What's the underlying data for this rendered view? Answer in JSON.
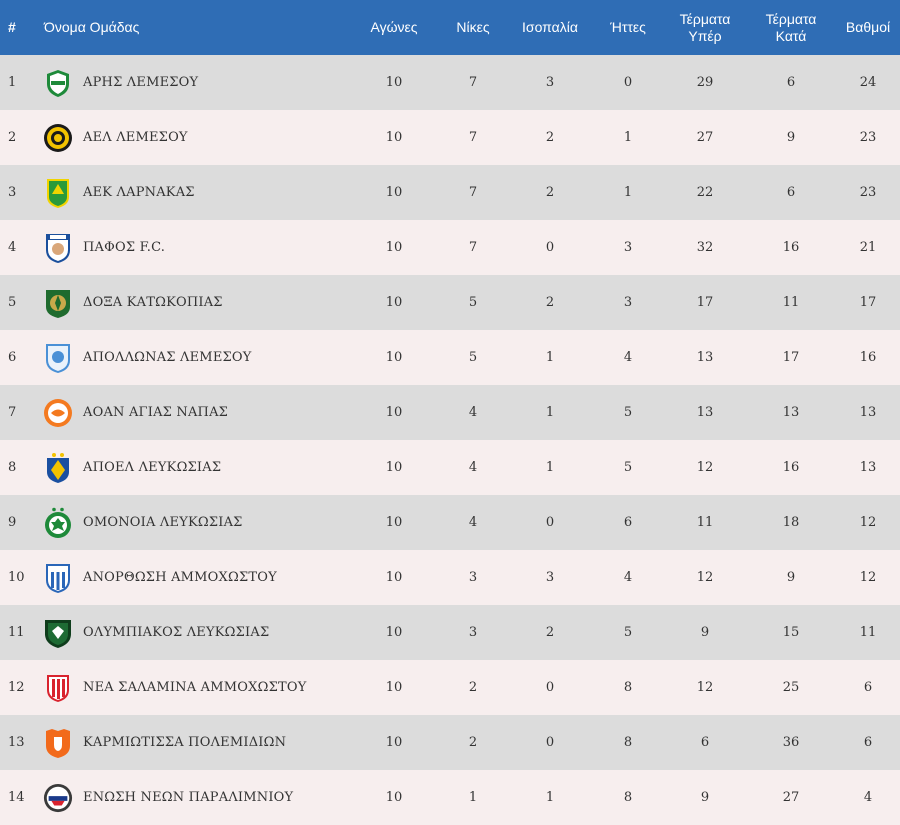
{
  "headers": {
    "rank": "#",
    "team": "Όνομα Ομάδας",
    "played": "Αγώνες",
    "wins": "Νίκες",
    "draws": "Ισοπαλία",
    "losses": "Ήττες",
    "goals_for_1": "Τέρματα",
    "goals_for_2": "Υπέρ",
    "goals_against_1": "Τέρματα",
    "goals_against_2": "Κατά",
    "points": "Βαθμοί"
  },
  "colors": {
    "header_bg": "#2f6db5",
    "row_odd": "#dcdcdc",
    "row_even": "#f7eeee"
  },
  "rows": [
    {
      "rank": "1",
      "team": "ΑΡΗΣ ΛΕΜΕΣΟΥ",
      "crest": "aris-crest-icon",
      "played": "10",
      "wins": "7",
      "draws": "3",
      "losses": "0",
      "gf": "29",
      "ga": "6",
      "pts": "24"
    },
    {
      "rank": "2",
      "team": "ΑΕΛ ΛΕΜΕΣΟΥ",
      "crest": "ael-crest-icon",
      "played": "10",
      "wins": "7",
      "draws": "2",
      "losses": "1",
      "gf": "27",
      "ga": "9",
      "pts": "23"
    },
    {
      "rank": "3",
      "team": "ΑΕΚ ΛΑΡΝΑΚΑΣ",
      "crest": "aek-crest-icon",
      "played": "10",
      "wins": "7",
      "draws": "2",
      "losses": "1",
      "gf": "22",
      "ga": "6",
      "pts": "23"
    },
    {
      "rank": "4",
      "team": "ΠΑΦΟΣ F.C.",
      "crest": "pafos-crest-icon",
      "played": "10",
      "wins": "7",
      "draws": "0",
      "losses": "3",
      "gf": "32",
      "ga": "16",
      "pts": "21"
    },
    {
      "rank": "5",
      "team": "ΔΟΞΑ ΚΑΤΩΚΟΠΙΑΣ",
      "crest": "doxa-crest-icon",
      "played": "10",
      "wins": "5",
      "draws": "2",
      "losses": "3",
      "gf": "17",
      "ga": "11",
      "pts": "17"
    },
    {
      "rank": "6",
      "team": "ΑΠΟΛΛΩΝΑΣ ΛΕΜΕΣΟΥ",
      "crest": "apollon-crest-icon",
      "played": "10",
      "wins": "5",
      "draws": "1",
      "losses": "4",
      "gf": "13",
      "ga": "17",
      "pts": "16"
    },
    {
      "rank": "7",
      "team": "ΑΟΑΝ ΑΓΙΑΣ ΝΑΠΑΣ",
      "crest": "aoan-crest-icon",
      "played": "10",
      "wins": "4",
      "draws": "1",
      "losses": "5",
      "gf": "13",
      "ga": "13",
      "pts": "13"
    },
    {
      "rank": "8",
      "team": "ΑΠΟΕΛ ΛΕΥΚΩΣΙΑΣ",
      "crest": "apoel-crest-icon",
      "played": "10",
      "wins": "4",
      "draws": "1",
      "losses": "5",
      "gf": "12",
      "ga": "16",
      "pts": "13"
    },
    {
      "rank": "9",
      "team": "ΟΜΟΝΟΙΑ ΛΕΥΚΩΣΙΑΣ",
      "crest": "omonoia-crest-icon",
      "played": "10",
      "wins": "4",
      "draws": "0",
      "losses": "6",
      "gf": "11",
      "ga": "18",
      "pts": "12"
    },
    {
      "rank": "10",
      "team": "ΑΝΟΡΘΩΣΗ ΑΜΜΟΧΩΣΤΟΥ",
      "crest": "anorthosis-crest-icon",
      "played": "10",
      "wins": "3",
      "draws": "3",
      "losses": "4",
      "gf": "12",
      "ga": "9",
      "pts": "12"
    },
    {
      "rank": "11",
      "team": "ΟΛΥΜΠΙΑΚΟΣ ΛΕΥΚΩΣΙΑΣ",
      "crest": "olympiakos-crest-icon",
      "played": "10",
      "wins": "3",
      "draws": "2",
      "losses": "5",
      "gf": "9",
      "ga": "15",
      "pts": "11"
    },
    {
      "rank": "12",
      "team": "ΝΕΑ ΣΑΛΑΜΙΝΑ ΑΜΜΟΧΩΣΤΟΥ",
      "crest": "nea-salamina-crest-icon",
      "played": "10",
      "wins": "2",
      "draws": "0",
      "losses": "8",
      "gf": "12",
      "ga": "25",
      "pts": "6"
    },
    {
      "rank": "13",
      "team": "ΚΑΡΜΙΩΤΙΣΣΑ ΠΟΛΕΜΙΔΙΩΝ",
      "crest": "karmiotissa-crest-icon",
      "played": "10",
      "wins": "2",
      "draws": "0",
      "losses": "8",
      "gf": "6",
      "ga": "36",
      "pts": "6"
    },
    {
      "rank": "14",
      "team": "ΕΝΩΣΗ ΝΕΩΝ ΠΑΡΑΛΙΜΝΙΟΥ",
      "crest": "enp-crest-icon",
      "played": "10",
      "wins": "1",
      "draws": "1",
      "losses": "8",
      "gf": "9",
      "ga": "27",
      "pts": "4"
    }
  ]
}
